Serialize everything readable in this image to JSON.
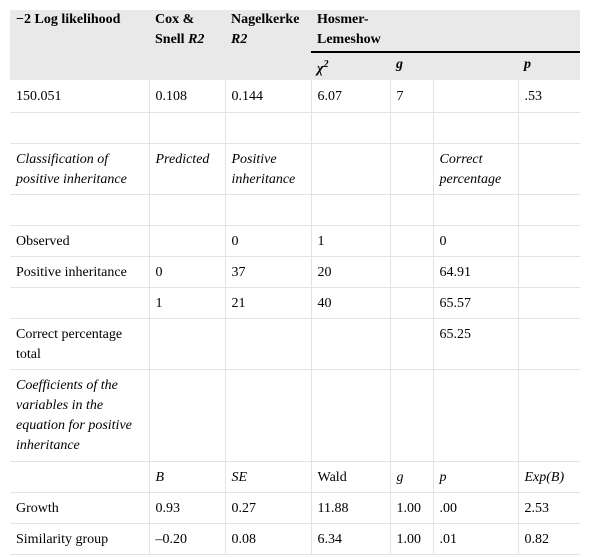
{
  "header": {
    "col1": "−2 Log likelihood",
    "col2_line1": "Cox &",
    "col2_line2": "Snell R2",
    "col3_line1": "Nagelkerke",
    "col3_line2": "R2",
    "col4_line1": "Hosmer-",
    "col4_line2": "Lemeshow",
    "sub_chi": "χ2",
    "sub_g": "g",
    "sub_p": "p"
  },
  "rows": {
    "fit": [
      "150.051",
      "0.108",
      "0.144",
      "6.07",
      "7",
      "",
      ".53"
    ],
    "classification_title": "Classification of positive inheritance",
    "classification_predicted": "Predicted",
    "classification_positive": "Positive inheritance",
    "classification_correct": "Correct percentage",
    "observed": [
      "Observed",
      "",
      "0",
      "1",
      "",
      "0",
      ""
    ],
    "pos_inh_0": [
      "Positive inheritance",
      "0",
      "37",
      "20",
      "",
      "64.91",
      ""
    ],
    "pos_inh_1": [
      "",
      "1",
      "21",
      "40",
      "",
      "65.57",
      ""
    ],
    "correct_total": [
      "Correct percentage total",
      "",
      "",
      "",
      "",
      "65.25",
      ""
    ],
    "coef_title": "Coefficients of the variables in the equation for positive inheritance",
    "coef_header": [
      "",
      "B",
      "SE",
      "Wald",
      "g",
      "p",
      "Exp(B)"
    ],
    "growth": [
      "Growth",
      "0.93",
      "0.27",
      "11.88",
      "1.00",
      ".00",
      "2.53"
    ],
    "similarity": [
      "Similarity group",
      "–0.20",
      "0.08",
      "6.34",
      "1.00",
      ".01",
      "0.82"
    ]
  }
}
